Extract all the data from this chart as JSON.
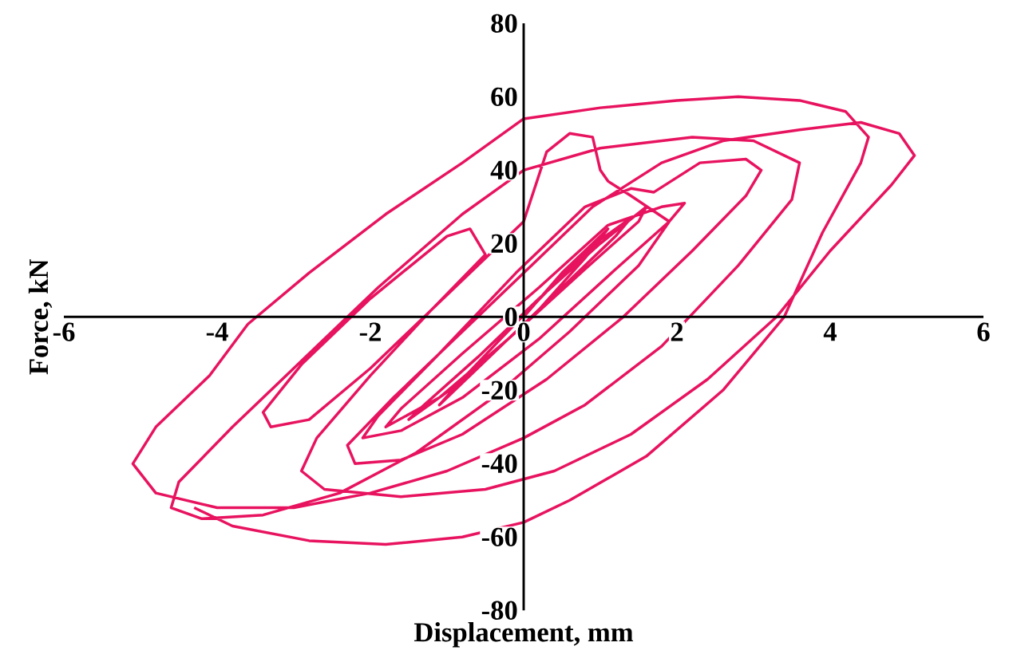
{
  "chart_data": {
    "type": "line",
    "xlabel": "Displacement, mm",
    "ylabel": "Force, kN",
    "xlim": [
      -6,
      6
    ],
    "ylim": [
      -80,
      80
    ],
    "xticks": [
      -6,
      -4,
      -2,
      0,
      2,
      4,
      6
    ],
    "yticks": [
      -80,
      -60,
      -40,
      -20,
      0,
      20,
      40,
      60,
      80
    ],
    "line_style": "solid",
    "series": [
      {
        "color": "#e8135f",
        "x": [
          0,
          0.5,
          0.9,
          1.1,
          0.8,
          0.2,
          -0.4,
          -0.9,
          -1.1,
          -0.8,
          -0.3,
          0.4,
          1.0,
          1.4,
          1.2,
          0.6,
          -0.2,
          -0.9,
          -1.5,
          -1.3,
          -0.6,
          0.2,
          1.0,
          1.6,
          1.5,
          0.8,
          -0.2,
          -1.1,
          -1.8,
          -1.6,
          -0.8,
          0.2,
          1.1,
          1.8,
          2.1,
          1.9,
          1.2,
          0.2,
          -0.8,
          -1.6,
          -2.1,
          -1.9,
          -1.1,
          -0.1,
          0.8,
          1.4,
          1.7,
          2.3,
          2.9,
          3.1,
          2.9,
          2.2,
          1.3,
          0.3,
          -0.8,
          -1.6,
          -2.2,
          -2.3,
          -1.7,
          -0.8,
          0.1,
          0.9,
          1.8,
          2.6,
          3.6,
          4.4,
          4.9,
          5.1,
          4.8,
          4.0,
          3.3,
          2.4,
          1.4,
          0.4,
          -0.5,
          -1.6,
          -2.6,
          -2.9,
          -2.7,
          -2.0,
          -1.2,
          -0.5,
          -0.7,
          -1.0,
          -2.0,
          -2.9,
          -3.4,
          -3.3,
          -2.8,
          -2.0,
          -1.0,
          0,
          0.3,
          0.6,
          0.9,
          1.0,
          1.1,
          1.4,
          1.9,
          1.5,
          0.6,
          -0.4,
          -1.4,
          -2.4,
          -3.4,
          -4.2,
          -4.6,
          -4.5,
          -3.8,
          -2.9,
          -1.9,
          -0.8,
          0,
          1.0,
          2.2,
          3.0,
          3.6,
          3.5,
          2.8,
          1.8,
          0.8,
          0,
          -1.0,
          -2.0,
          -3.0,
          -4.0,
          -4.8,
          -5.1,
          -4.8,
          -4.1,
          -3.6,
          -2.8,
          -1.8,
          -0.8,
          0,
          1.0,
          2.0,
          2.8,
          3.6,
          4.2,
          4.5,
          4.4,
          3.9,
          3.4,
          2.6,
          1.6,
          0.6,
          0,
          -0.8,
          -1.8,
          -2.8,
          -3.8,
          -4.3
        ],
        "values": [
          0,
          12,
          20,
          24,
          16,
          2,
          -10,
          -20,
          -24,
          -17,
          -6,
          9,
          21,
          27,
          22,
          10,
          -6,
          -19,
          -28,
          -24,
          -11,
          5,
          20,
          30,
          26,
          13,
          -6,
          -22,
          -30,
          -25,
          -10,
          8,
          25,
          30,
          31,
          26,
          13,
          -6,
          -22,
          -31,
          -33,
          -27,
          -10,
          12,
          30,
          35,
          34,
          42,
          43,
          40,
          33,
          18,
          0,
          -17,
          -32,
          -39,
          -40,
          -35,
          -22,
          -4,
          14,
          30,
          42,
          48,
          51,
          53,
          50,
          44,
          36,
          18,
          0,
          -17,
          -32,
          -42,
          -47,
          -49,
          -47,
          -42,
          -33,
          -16,
          2,
          17,
          24,
          22,
          5,
          -13,
          -26,
          -30,
          -28,
          -14,
          6,
          26,
          45,
          50,
          49,
          40,
          37,
          33,
          26,
          14,
          -4,
          -22,
          -37,
          -48,
          -54,
          -55,
          -52,
          -45,
          -30,
          -12,
          8,
          28,
          40,
          46,
          49,
          48,
          42,
          32,
          14,
          -8,
          -24,
          -33,
          -42,
          -48,
          -52,
          -52,
          -48,
          -40,
          -30,
          -16,
          -2,
          12,
          28,
          42,
          54,
          57,
          59,
          60,
          59,
          56,
          49,
          42,
          23,
          0,
          -20,
          -38,
          -50,
          -56,
          -60,
          -62,
          -61,
          -57,
          -52
        ]
      }
    ]
  }
}
